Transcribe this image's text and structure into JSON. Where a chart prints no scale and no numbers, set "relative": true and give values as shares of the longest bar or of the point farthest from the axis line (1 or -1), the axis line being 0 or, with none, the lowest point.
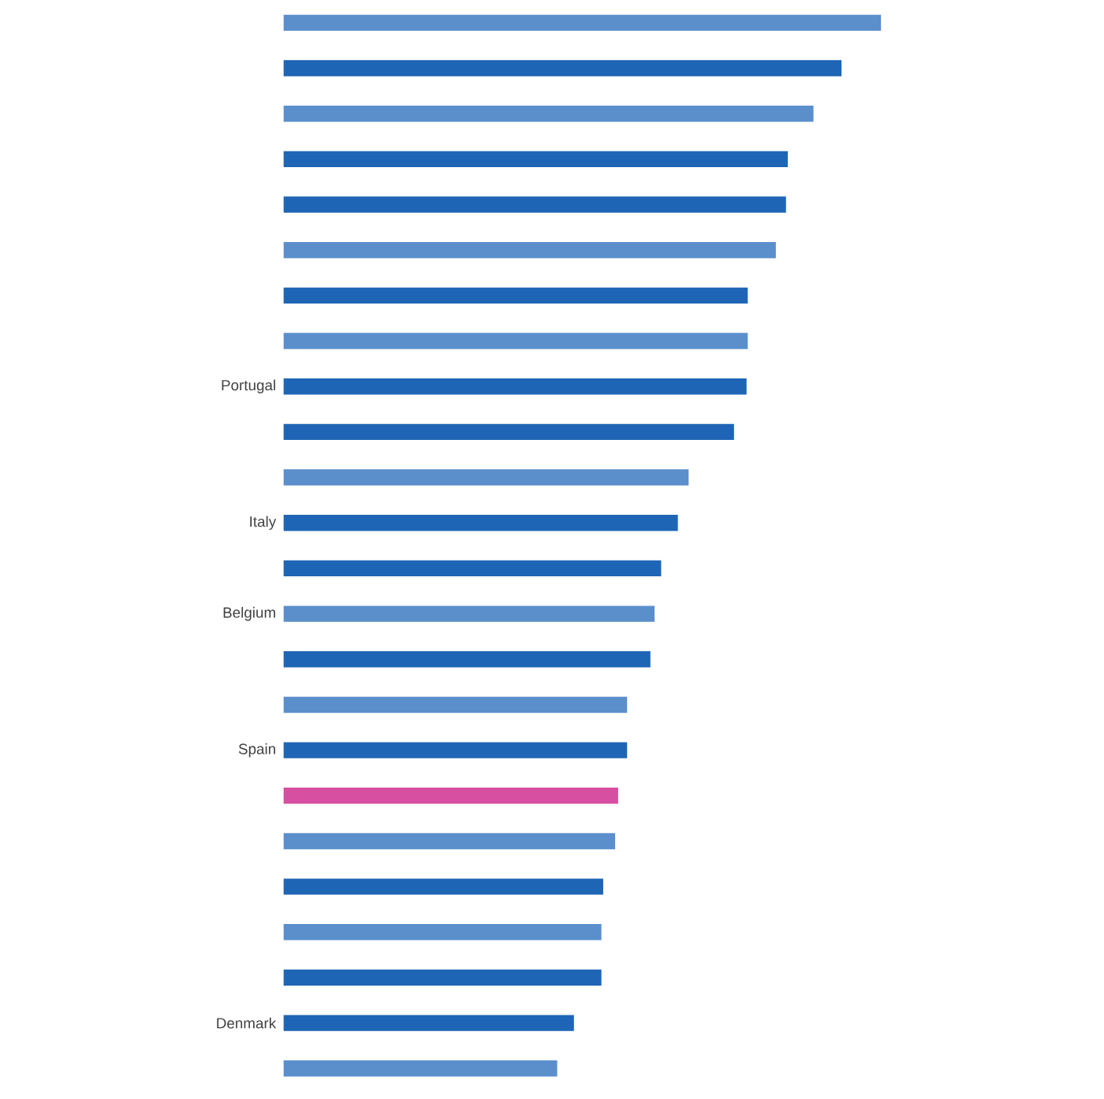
{
  "chart_data": {
    "type": "bar",
    "orientation": "horizontal",
    "relative": true,
    "categories": [
      null,
      null,
      null,
      null,
      null,
      null,
      null,
      null,
      "Portugal",
      null,
      null,
      "Italy",
      null,
      "Belgium",
      null,
      null,
      "Spain",
      null,
      null,
      null,
      null,
      null,
      "Denmark",
      null
    ],
    "values": [
      1,
      0.934,
      0.887,
      0.844,
      0.841,
      0.824,
      0.777,
      0.777,
      0.775,
      0.754,
      0.678,
      0.66,
      0.632,
      0.621,
      0.614,
      0.575,
      0.575,
      0.56,
      0.555,
      0.535,
      0.532,
      0.532,
      0.486,
      0.458
    ],
    "colors": [
      "#5b8fcc",
      "#1f65b5",
      "#5b8fcc",
      "#1f65b5",
      "#1f65b5",
      "#5b8fcc",
      "#1f65b5",
      "#5b8fcc",
      "#1f65b5",
      "#1f65b5",
      "#5b8fcc",
      "#1f65b5",
      "#1f65b5",
      "#5b8fcc",
      "#1f65b5",
      "#5b8fcc",
      "#1f65b5",
      "#d64fa0",
      "#5b8fcc",
      "#1f65b5",
      "#5b8fcc",
      "#1f65b5",
      "#1f65b5",
      "#5b8fcc"
    ]
  }
}
